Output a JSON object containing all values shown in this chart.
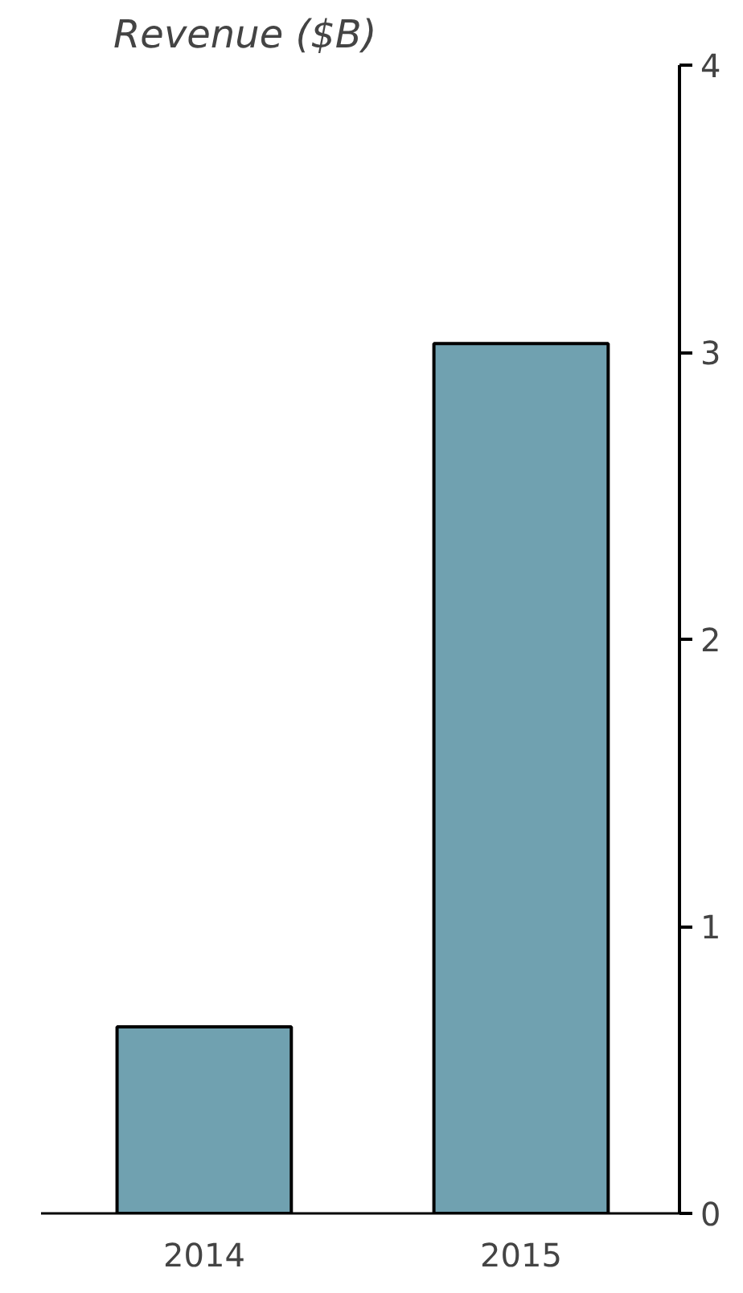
{
  "chart_data": {
    "type": "bar",
    "title": "Revenue ($B)",
    "categories": [
      "2014",
      "2015"
    ],
    "values": [
      0.65,
      3.03
    ],
    "color": "#70a1b0",
    "ylim": [
      0,
      4
    ],
    "yticks": [
      0,
      1,
      2,
      3,
      4
    ],
    "grid": false
  }
}
